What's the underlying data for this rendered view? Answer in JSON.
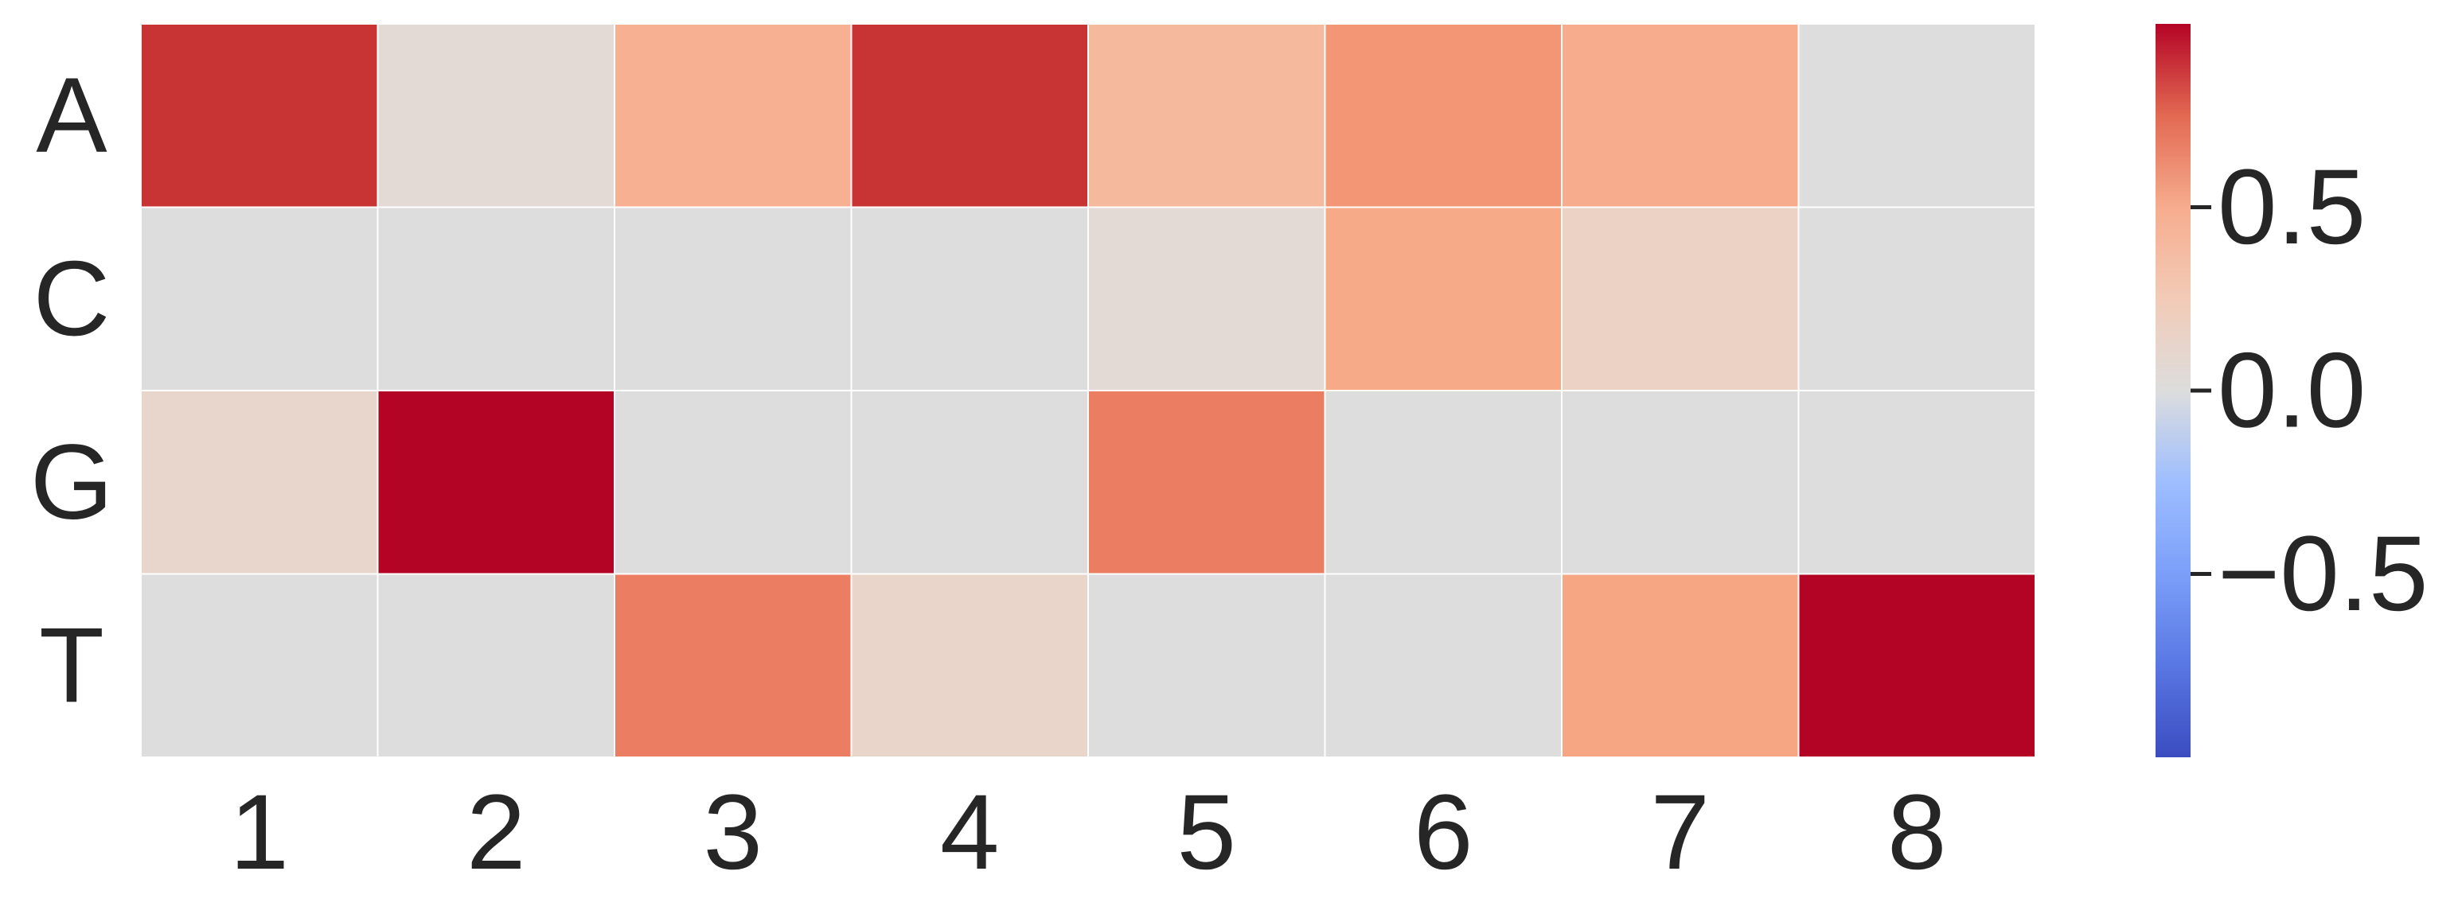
{
  "chart_data": {
    "type": "heatmap",
    "title": "",
    "xlabel": "",
    "ylabel": "",
    "x_categories": [
      "1",
      "2",
      "3",
      "4",
      "5",
      "6",
      "7",
      "8"
    ],
    "y_categories": [
      "A",
      "C",
      "G",
      "T"
    ],
    "values": [
      [
        0.9,
        0.05,
        0.4,
        0.9,
        0.35,
        0.55,
        0.42,
        0.0
      ],
      [
        0.0,
        0.0,
        0.0,
        0.0,
        0.05,
        0.45,
        0.15,
        0.0
      ],
      [
        0.1,
        1.0,
        0.0,
        0.0,
        0.65,
        0.0,
        0.0,
        0.0
      ],
      [
        0.0,
        0.0,
        0.65,
        0.12,
        0.0,
        0.0,
        0.48,
        1.0
      ]
    ],
    "colorscale": "coolwarm",
    "vmin": -1.0,
    "vmax": 1.0,
    "colorbar": {
      "ticks": [
        0.5,
        0.0,
        -0.5
      ],
      "tick_labels": [
        "0.5",
        "0.0",
        "−0.5"
      ],
      "placement": "right"
    },
    "grid": false,
    "legend": "none",
    "colors": {
      "cell_border": "#ffffff",
      "text": "#262626"
    }
  }
}
